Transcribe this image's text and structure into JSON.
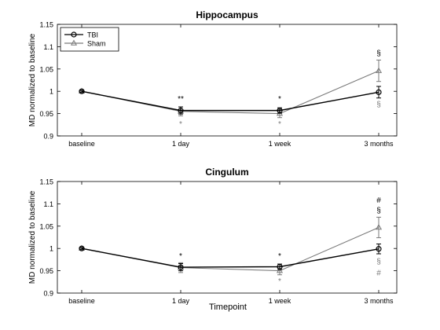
{
  "xlabel": "Timepoint",
  "colors": {
    "tbi": "#000000",
    "sham": "#7a7a7a"
  },
  "chart_data": [
    {
      "type": "line",
      "title": "Hippocampus",
      "xlabel": "",
      "ylabel": "MD normalized to baseline",
      "categories": [
        "baseline",
        "1 day",
        "1 week",
        "3 months"
      ],
      "ylim": [
        0.9,
        1.15
      ],
      "yticks": [
        "0.9",
        "0.95",
        "1",
        "1.05",
        "1.1",
        "1.15"
      ],
      "legend": "top-left",
      "series": [
        {
          "name": "TBI",
          "marker": "circle",
          "color": "#000000",
          "values": [
            1.0,
            0.957,
            0.957,
            0.998
          ],
          "err": [
            0.002,
            0.008,
            0.006,
            0.013
          ]
        },
        {
          "name": "Sham",
          "marker": "triangle",
          "color": "#7a7a7a",
          "values": [
            1.0,
            0.955,
            0.95,
            1.046
          ],
          "err": [
            0.002,
            0.01,
            0.009,
            0.024
          ]
        }
      ],
      "annotations": [
        {
          "x": "1 day",
          "y": 0.983,
          "text": "**",
          "color": "#000000"
        },
        {
          "x": "1 day",
          "y": 0.926,
          "text": "*",
          "color": "#7a7a7a"
        },
        {
          "x": "1 week",
          "y": 0.983,
          "text": "*",
          "color": "#000000"
        },
        {
          "x": "1 week",
          "y": 0.926,
          "text": "*",
          "color": "#7a7a7a"
        },
        {
          "x": "3 months",
          "y": 1.085,
          "text": "§",
          "color": "#000000"
        },
        {
          "x": "3 months",
          "y": 0.97,
          "text": "§",
          "color": "#7a7a7a"
        }
      ]
    },
    {
      "type": "line",
      "title": "Cingulum",
      "xlabel": "Timepoint",
      "ylabel": "MD normalized to baseline",
      "categories": [
        "baseline",
        "1 day",
        "1 week",
        "3 months"
      ],
      "ylim": [
        0.9,
        1.15
      ],
      "yticks": [
        "0.9",
        "0.95",
        "1",
        "1.05",
        "1.1",
        "1.15"
      ],
      "legend": "none",
      "series": [
        {
          "name": "TBI",
          "marker": "circle",
          "color": "#000000",
          "values": [
            1.0,
            0.958,
            0.959,
            0.999
          ],
          "err": [
            0.002,
            0.008,
            0.006,
            0.011
          ]
        },
        {
          "name": "Sham",
          "marker": "triangle",
          "color": "#7a7a7a",
          "values": [
            1.0,
            0.957,
            0.95,
            1.047
          ],
          "err": [
            0.002,
            0.011,
            0.009,
            0.023
          ]
        }
      ],
      "annotations": [
        {
          "x": "1 day",
          "y": 0.983,
          "text": "*",
          "color": "#000000"
        },
        {
          "x": "1 week",
          "y": 0.983,
          "text": "*",
          "color": "#000000"
        },
        {
          "x": "1 week",
          "y": 0.926,
          "text": "*",
          "color": "#7a7a7a"
        },
        {
          "x": "3 months",
          "y": 1.108,
          "text": "#",
          "color": "#000000"
        },
        {
          "x": "3 months",
          "y": 1.085,
          "text": "§",
          "color": "#000000"
        },
        {
          "x": "3 months",
          "y": 0.97,
          "text": "§",
          "color": "#7a7a7a"
        },
        {
          "x": "3 months",
          "y": 0.945,
          "text": "#",
          "color": "#7a7a7a"
        }
      ]
    }
  ]
}
